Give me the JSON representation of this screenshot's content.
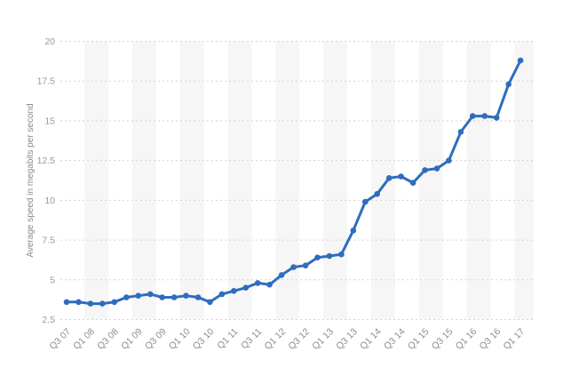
{
  "page": {
    "background_color": "#ffffff"
  },
  "chart_data": {
    "type": "line",
    "title": "",
    "xlabel": "",
    "ylabel": "Average speed in megabits per second",
    "ylim": [
      2.5,
      20
    ],
    "yticks": [
      2.5,
      5,
      7.5,
      10,
      12.5,
      15,
      17.5,
      20
    ],
    "ytick_labels": [
      "2.5",
      "5",
      "7.5",
      "10",
      "12.5",
      "15",
      "17.5",
      "20"
    ],
    "x_label_every": 2,
    "grid": "horizontal-dotted",
    "legend": "none",
    "categories": [
      "Q3 07",
      "Q4 07",
      "Q1 08",
      "Q2 08",
      "Q3 08",
      "Q4 08",
      "Q1 09",
      "Q2 09",
      "Q3 09",
      "Q4 09",
      "Q1 10",
      "Q2 10",
      "Q3 10",
      "Q4 10",
      "Q1 11",
      "Q2 11",
      "Q3 11",
      "Q4 11",
      "Q1 12",
      "Q2 12",
      "Q3 12",
      "Q4 12",
      "Q1 13",
      "Q2 13",
      "Q3 13",
      "Q4 13",
      "Q1 14",
      "Q2 14",
      "Q3 14",
      "Q4 14",
      "Q1 15",
      "Q2 15",
      "Q3 15",
      "Q4 15",
      "Q1 16",
      "Q2 16",
      "Q3 16",
      "Q4 16",
      "Q1 17"
    ],
    "values": [
      3.6,
      3.6,
      3.5,
      3.5,
      3.6,
      3.9,
      4.0,
      4.1,
      3.9,
      3.9,
      4.0,
      3.9,
      3.6,
      4.1,
      4.3,
      4.5,
      4.8,
      4.7,
      5.3,
      5.8,
      5.9,
      6.4,
      6.5,
      6.6,
      8.1,
      9.9,
      10.4,
      11.4,
      11.5,
      11.1,
      11.9,
      12.0,
      12.5,
      14.3,
      15.3,
      15.3,
      15.2,
      17.3,
      18.8
    ],
    "visible_x_tick_labels": [
      "Q3 07",
      "Q1 08",
      "Q3 08",
      "Q1 09",
      "Q3 09",
      "Q1 10",
      "Q3 10",
      "Q1 11",
      "Q3 11",
      "Q1 12",
      "Q3 12",
      "Q1 13",
      "Q3 13",
      "Q1 14",
      "Q3 14",
      "Q1 15",
      "Q3 15",
      "Q1 16",
      "Q3 16",
      "Q1 17"
    ],
    "line_color": "#2e6dbe",
    "marker_color": "#2e6dbe",
    "band_color": "#f6f6f6",
    "grid_color": "#d4d4d4",
    "tick_text_color": "#999999"
  }
}
